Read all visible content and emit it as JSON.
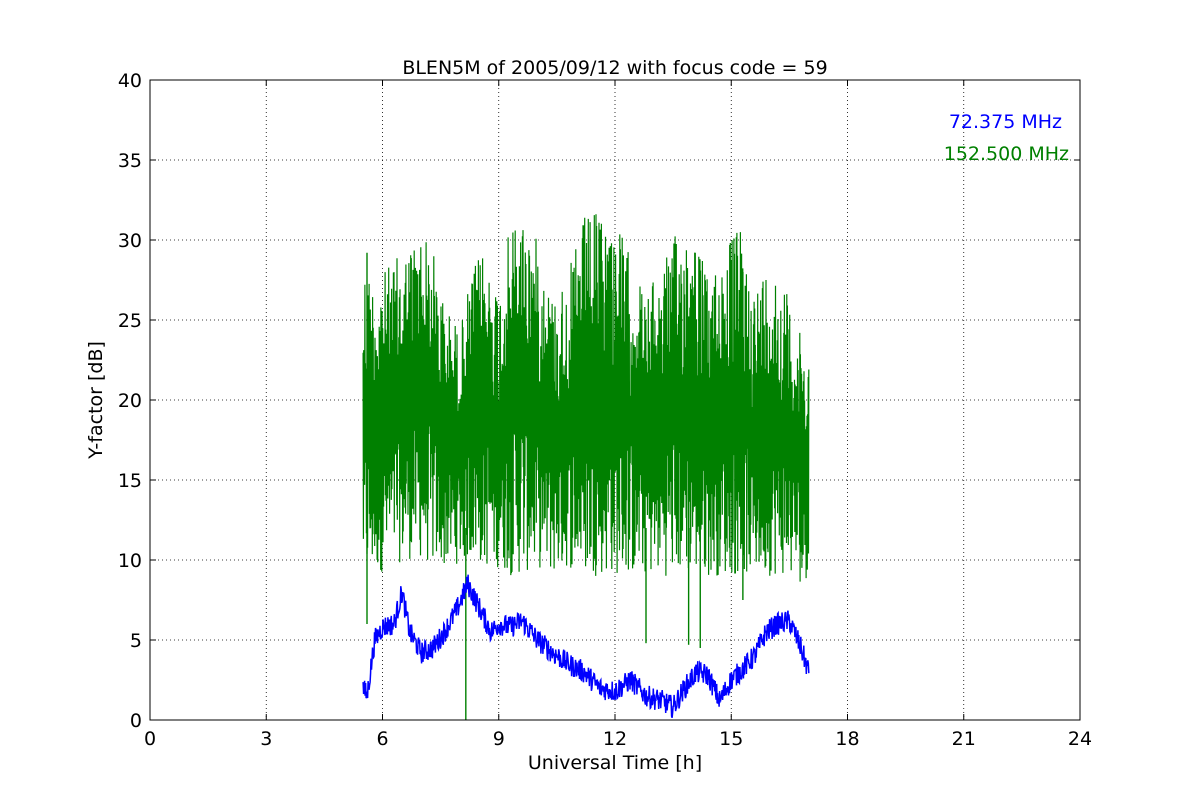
{
  "chart_data": {
    "type": "line",
    "title": "BLEN5M of 2005/09/12 with focus code = 59",
    "xlabel": "Universal Time [h]",
    "ylabel": "Y-factor [dB]",
    "xlim": [
      0,
      24
    ],
    "ylim": [
      0,
      40
    ],
    "xticks": [
      0,
      3,
      6,
      9,
      12,
      15,
      18,
      21,
      24
    ],
    "yticks": [
      0,
      5,
      10,
      15,
      20,
      25,
      30,
      35,
      40
    ],
    "xtick_labels": [
      "0",
      "3",
      "6",
      "9",
      "12",
      "15",
      "18",
      "21",
      "24"
    ],
    "ytick_labels": [
      "0",
      "5",
      "10",
      "15",
      "20",
      "25",
      "30",
      "35",
      "40"
    ],
    "grid": true,
    "legend_position": "top-right",
    "series": [
      {
        "name": "72.375 MHz",
        "color": "#0000ff",
        "x": [
          5.5,
          5.6,
          5.8,
          6.0,
          6.3,
          6.5,
          6.7,
          7.0,
          7.3,
          7.6,
          7.9,
          8.2,
          8.5,
          8.8,
          9.0,
          9.3,
          9.6,
          10.0,
          10.4,
          10.8,
          11.2,
          11.6,
          12.0,
          12.4,
          12.8,
          13.2,
          13.5,
          13.8,
          14.1,
          14.4,
          14.7,
          15.0,
          15.3,
          15.6,
          15.9,
          16.2,
          16.5,
          16.8,
          17.0
        ],
        "values": [
          2.0,
          1.5,
          5.0,
          5.8,
          6.0,
          8.0,
          5.5,
          4.2,
          4.5,
          5.5,
          6.8,
          8.5,
          7.0,
          5.5,
          6.0,
          5.8,
          6.2,
          5.0,
          4.2,
          3.5,
          3.0,
          2.0,
          1.8,
          2.5,
          1.5,
          1.2,
          0.8,
          2.0,
          3.0,
          2.8,
          1.2,
          2.5,
          3.2,
          4.0,
          5.5,
          6.0,
          6.2,
          4.5,
          3.0
        ]
      },
      {
        "name": "152.500 MHz",
        "color": "#008000",
        "x": [
          5.5,
          5.8,
          6.2,
          6.6,
          7.0,
          7.3,
          7.6,
          8.0,
          8.3,
          8.6,
          9.0,
          9.3,
          9.6,
          10.0,
          10.4,
          10.8,
          11.2,
          11.6,
          12.0,
          12.4,
          12.8,
          13.2,
          13.6,
          14.0,
          14.4,
          14.8,
          15.2,
          15.6,
          16.0,
          16.4,
          16.8,
          17.0
        ],
        "upper": [
          29.0,
          27.5,
          28.5,
          29.5,
          30.8,
          29.5,
          26.0,
          24.5,
          28.0,
          29.5,
          27.0,
          31.0,
          31.8,
          30.0,
          26.5,
          28.0,
          31.5,
          31.8,
          31.5,
          29.0,
          26.5,
          28.5,
          30.5,
          31.5,
          27.5,
          29.5,
          31.0,
          27.0,
          29.0,
          27.0,
          24.0,
          23.0
        ],
        "lower": [
          8.5,
          9.0,
          9.5,
          10.0,
          10.0,
          9.5,
          9.5,
          9.8,
          10.0,
          9.5,
          9.5,
          9.0,
          9.0,
          9.5,
          9.0,
          9.5,
          9.0,
          9.0,
          9.0,
          9.0,
          9.0,
          9.0,
          9.0,
          9.0,
          9.0,
          9.0,
          9.0,
          9.0,
          9.0,
          9.0,
          8.5,
          9.0
        ],
        "spikes": [
          {
            "x": 5.6,
            "low": 6.0,
            "high": 29.2
          },
          {
            "x": 8.15,
            "low": 0.0,
            "high": 12.0
          },
          {
            "x": 12.8,
            "low": 4.8,
            "high": 12.0
          },
          {
            "x": 13.9,
            "low": 4.7,
            "high": 12.0
          },
          {
            "x": 14.2,
            "low": 4.5,
            "high": 12.0
          },
          {
            "x": 15.3,
            "low": 7.5,
            "high": 28.0
          }
        ]
      }
    ]
  }
}
